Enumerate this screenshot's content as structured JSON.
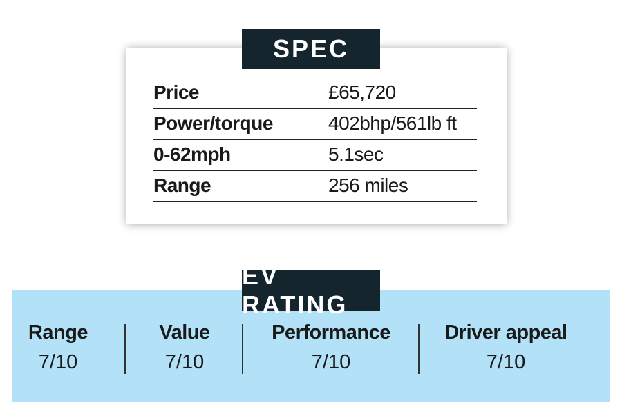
{
  "spec": {
    "title": "SPEC",
    "rows": [
      [
        "Price",
        "£65,720"
      ],
      [
        "Power/torque",
        "402bhp/561lb ft"
      ],
      [
        "0-62mph",
        "5.1sec"
      ],
      [
        "Range",
        "256 miles"
      ]
    ]
  },
  "ev_rating": {
    "title": "EV RATING",
    "items": [
      {
        "label": "Range",
        "score": "7/10"
      },
      {
        "label": "Value",
        "score": "7/10"
      },
      {
        "label": "Performance",
        "score": "7/10"
      },
      {
        "label": "Driver appeal",
        "score": "7/10"
      }
    ]
  }
}
